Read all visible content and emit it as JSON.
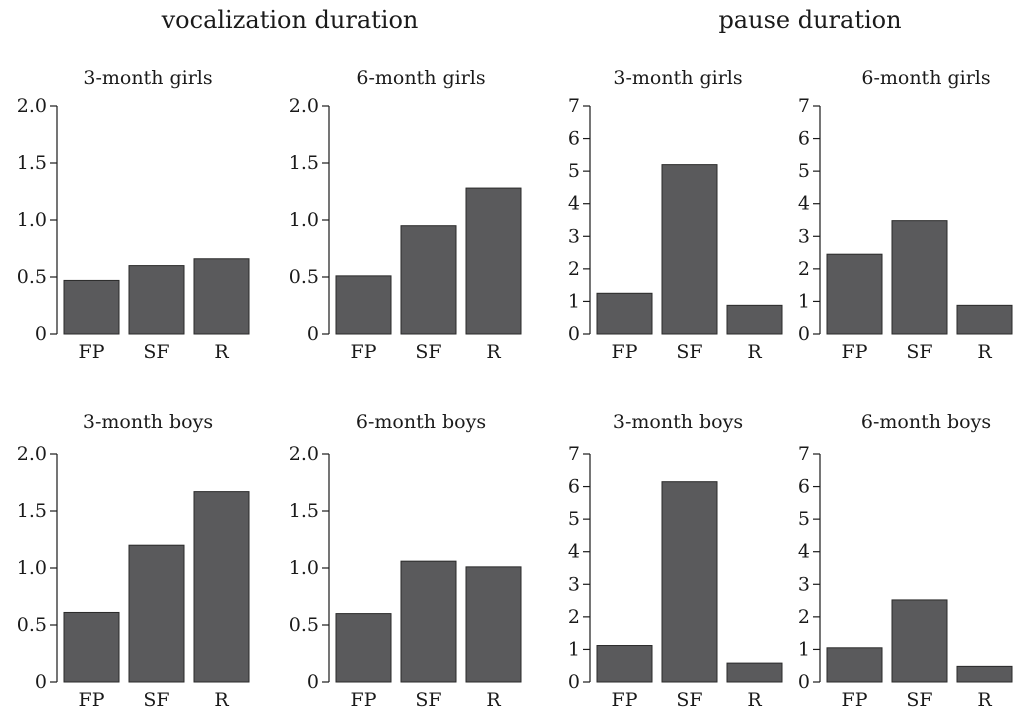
{
  "groups": [
    {
      "title": "vocalization duration"
    },
    {
      "title": "pause duration"
    }
  ],
  "colors": {
    "bar_fill": "#5a5a5c",
    "bar_stroke": "#2a2a2a",
    "axis": "#1a1a1a",
    "text": "#1a1a1a"
  },
  "chart_data": [
    {
      "type": "bar",
      "group": "vocalization duration",
      "title": "3-month girls",
      "categories": [
        "FP",
        "SF",
        "R"
      ],
      "values": [
        0.47,
        0.6,
        0.66
      ],
      "ylim": [
        0,
        2.0
      ],
      "yticks": [
        "0",
        "0.5",
        "1.0",
        "1.5",
        "2.0"
      ],
      "ytick_values": [
        0,
        0.5,
        1.0,
        1.5,
        2.0
      ]
    },
    {
      "type": "bar",
      "group": "vocalization duration",
      "title": "6-month girls",
      "categories": [
        "FP",
        "SF",
        "R"
      ],
      "values": [
        0.51,
        0.95,
        1.28
      ],
      "ylim": [
        0,
        2.0
      ],
      "yticks": [
        "0",
        "0.5",
        "1.0",
        "1.5",
        "2.0"
      ],
      "ytick_values": [
        0,
        0.5,
        1.0,
        1.5,
        2.0
      ]
    },
    {
      "type": "bar",
      "group": "pause duration",
      "title": "3-month girls",
      "categories": [
        "FP",
        "SF",
        "R"
      ],
      "values": [
        1.25,
        5.2,
        0.88
      ],
      "ylim": [
        0,
        7
      ],
      "yticks": [
        "0",
        "1",
        "2",
        "3",
        "4",
        "5",
        "6",
        "7"
      ],
      "ytick_values": [
        0,
        1,
        2,
        3,
        4,
        5,
        6,
        7
      ]
    },
    {
      "type": "bar",
      "group": "pause duration",
      "title": "6-month girls",
      "categories": [
        "FP",
        "SF",
        "R"
      ],
      "values": [
        2.45,
        3.48,
        0.88
      ],
      "ylim": [
        0,
        7
      ],
      "yticks": [
        "0",
        "1",
        "2",
        "3",
        "4",
        "5",
        "6",
        "7"
      ],
      "ytick_values": [
        0,
        1,
        2,
        3,
        4,
        5,
        6,
        7
      ]
    },
    {
      "type": "bar",
      "group": "vocalization duration",
      "title": "3-month boys",
      "categories": [
        "FP",
        "SF",
        "R"
      ],
      "values": [
        0.61,
        1.2,
        1.67
      ],
      "ylim": [
        0,
        2.0
      ],
      "yticks": [
        "0",
        "0.5",
        "1.0",
        "1.5",
        "2.0"
      ],
      "ytick_values": [
        0,
        0.5,
        1.0,
        1.5,
        2.0
      ]
    },
    {
      "type": "bar",
      "group": "vocalization duration",
      "title": "6-month boys",
      "categories": [
        "FP",
        "SF",
        "R"
      ],
      "values": [
        0.6,
        1.06,
        1.01
      ],
      "ylim": [
        0,
        2.0
      ],
      "yticks": [
        "0",
        "0.5",
        "1.0",
        "1.5",
        "2.0"
      ],
      "ytick_values": [
        0,
        0.5,
        1.0,
        1.5,
        2.0
      ]
    },
    {
      "type": "bar",
      "group": "pause duration",
      "title": "3-month boys",
      "categories": [
        "FP",
        "SF",
        "R"
      ],
      "values": [
        1.12,
        6.15,
        0.58
      ],
      "ylim": [
        0,
        7
      ],
      "yticks": [
        "0",
        "1",
        "2",
        "3",
        "4",
        "5",
        "6",
        "7"
      ],
      "ytick_values": [
        0,
        1,
        2,
        3,
        4,
        5,
        6,
        7
      ]
    },
    {
      "type": "bar",
      "group": "pause duration",
      "title": "6-month boys",
      "categories": [
        "FP",
        "SF",
        "R"
      ],
      "values": [
        1.05,
        2.52,
        0.48
      ],
      "ylim": [
        0,
        7
      ],
      "yticks": [
        "0",
        "1",
        "2",
        "3",
        "4",
        "5",
        "6",
        "7"
      ],
      "ytick_values": [
        0,
        1,
        2,
        3,
        4,
        5,
        6,
        7
      ]
    }
  ]
}
